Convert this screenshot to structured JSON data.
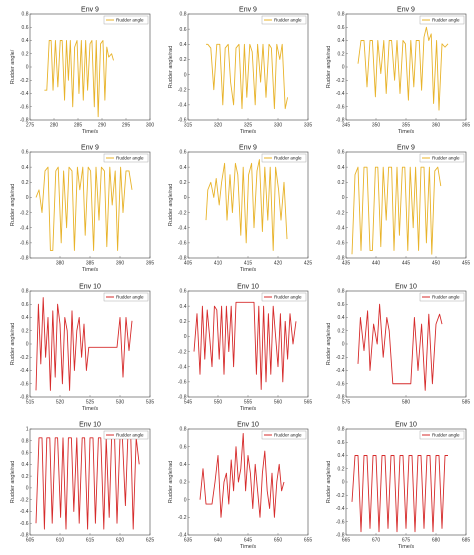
{
  "colors": {
    "yellow": "#e8b32a",
    "red": "#d62b2b",
    "axis": "#555555",
    "frame": "#444444"
  },
  "chart_data": [
    {
      "type": "line",
      "title": "Env 9",
      "xlabel": "Time/s",
      "ylabel": "Rudder angle/",
      "legend": "Rudder angle",
      "color": "yellow",
      "xlim": [
        275,
        300
      ],
      "ylim": [
        -0.8,
        0.8
      ],
      "xticks": [
        275,
        280,
        285,
        290,
        295,
        300
      ],
      "yticks": [
        -0.8,
        -0.6,
        -0.4,
        -0.2,
        0,
        0.2,
        0.4,
        0.6,
        0.8
      ],
      "x": [
        278,
        278.5,
        279,
        279.4,
        279.8,
        280.3,
        280.8,
        281.3,
        281.7,
        282.2,
        282.6,
        283,
        283.4,
        283.9,
        284.3,
        284.8,
        285.2,
        285.7,
        286.1,
        286.6,
        287,
        287.5,
        287.9,
        288.4,
        288.8,
        289.2,
        289.7,
        290.2,
        290.6,
        291,
        291.4,
        292,
        292.4
      ],
      "y": [
        -0.35,
        -0.35,
        0.4,
        0.4,
        -0.35,
        0.4,
        -0.3,
        0.4,
        0.4,
        -0.5,
        0.4,
        -0.2,
        0.4,
        -0.6,
        0.3,
        0.4,
        -0.4,
        0.4,
        -0.5,
        0.4,
        -0.35,
        0.35,
        0.4,
        -0.6,
        0.4,
        -0.75,
        0.35,
        0.4,
        -0.5,
        0.3,
        0.15,
        0.2,
        0.1
      ]
    },
    {
      "type": "line",
      "title": "Env 9",
      "xlabel": "Time/s",
      "ylabel": "Rudder angle/rad",
      "legend": "Rudder angle",
      "color": "yellow",
      "xlim": [
        315,
        335
      ],
      "ylim": [
        -0.6,
        0.8
      ],
      "xticks": [
        315,
        320,
        325,
        330,
        335
      ],
      "yticks": [
        -0.6,
        -0.4,
        -0.2,
        0,
        0.2,
        0.4,
        0.6,
        0.8
      ],
      "x": [
        318,
        318.3,
        318.8,
        319.3,
        319.8,
        320.3,
        320.8,
        321.2,
        321.7,
        322.1,
        322.6,
        323,
        323.5,
        324,
        324.4,
        324.8,
        325.3,
        325.7,
        326.2,
        326.6,
        327.1,
        327.5,
        328,
        328.5,
        328.9,
        329.4,
        329.8,
        330.3,
        330.7,
        331.2,
        331.6
      ],
      "y": [
        0.4,
        0.4,
        0.35,
        -0.2,
        0.4,
        0.4,
        -0.4,
        0.35,
        0.4,
        -0.1,
        -0.4,
        0.35,
        0.4,
        -0.45,
        0.4,
        -0.3,
        0.4,
        0.3,
        -0.4,
        0.4,
        -0.1,
        0.4,
        -0.3,
        0.4,
        0.35,
        -0.45,
        0.4,
        0.2,
        0.4,
        -0.45,
        -0.3
      ]
    },
    {
      "type": "line",
      "title": "Env 9",
      "xlabel": "Time/s",
      "ylabel": "Rudder angle/rad",
      "legend": "Rudder angle",
      "color": "yellow",
      "xlim": [
        345,
        365
      ],
      "ylim": [
        -0.8,
        0.8
      ],
      "xticks": [
        345,
        350,
        355,
        360,
        365
      ],
      "yticks": [
        -0.8,
        -0.6,
        -0.4,
        -0.2,
        0,
        0.2,
        0.4,
        0.6,
        0.8
      ],
      "x": [
        347,
        347.5,
        348,
        348.5,
        349,
        349.4,
        349.9,
        350.3,
        350.8,
        351.3,
        351.7,
        352.2,
        352.6,
        353.1,
        353.5,
        354,
        354.5,
        354.9,
        355.4,
        355.8,
        356.3,
        356.7,
        357.2,
        357.6,
        358,
        358.4,
        358.8,
        359.2,
        359.6,
        360.1,
        360.5,
        361,
        361.5,
        362
      ],
      "y": [
        0.05,
        0.4,
        0.4,
        -0.3,
        0.4,
        0.4,
        -0.45,
        0.4,
        -0.1,
        0.4,
        -0.4,
        0.4,
        0.4,
        -0.2,
        0.4,
        -0.4,
        0.4,
        0.35,
        -0.5,
        0.4,
        -0.3,
        0.4,
        0.4,
        -0.35,
        0.45,
        0.6,
        0.4,
        0.5,
        -0.55,
        0.4,
        -0.65,
        0.35,
        0.3,
        0.35
      ]
    },
    {
      "type": "line",
      "title": "Env 9",
      "xlabel": "Time/s",
      "ylabel": "Rudder angle/rad",
      "legend": "Rudder angle",
      "color": "yellow",
      "xlim": [
        375,
        395
      ],
      "ylim": [
        -0.8,
        0.6
      ],
      "xticks": [
        380,
        385,
        390,
        395
      ],
      "yticks": [
        -0.8,
        -0.6,
        -0.4,
        -0.2,
        0,
        0.2,
        0.4,
        0.6
      ],
      "x": [
        376,
        376.5,
        377,
        377.5,
        378,
        378.4,
        378.8,
        379.3,
        379.7,
        380.2,
        380.6,
        381.1,
        381.5,
        382,
        382.4,
        382.9,
        383.3,
        383.8,
        384.2,
        384.7,
        385.1,
        385.6,
        386,
        386.5,
        386.9,
        387.4,
        387.8,
        388.3,
        388.7,
        389.2,
        389.6,
        390.1,
        390.5,
        391,
        391.5,
        392
      ],
      "y": [
        0,
        0.1,
        -0.2,
        0.35,
        0.4,
        -0.7,
        -0.7,
        0.35,
        0.4,
        -0.6,
        0.35,
        -0.4,
        0.4,
        0.35,
        -0.7,
        0.4,
        0.1,
        0.4,
        -0.5,
        0.4,
        0.35,
        -0.7,
        0.4,
        -0.3,
        0.4,
        0.35,
        -0.65,
        0.4,
        -0.1,
        0.35,
        -0.7,
        0.4,
        -0.2,
        0.35,
        0.35,
        0.1
      ]
    },
    {
      "type": "line",
      "title": "Env 9",
      "xlabel": "Time/s",
      "ylabel": "Rudder angle/rad",
      "legend": "Rudder angle",
      "color": "yellow",
      "xlim": [
        405,
        425
      ],
      "ylim": [
        -0.8,
        0.6
      ],
      "xticks": [
        405,
        410,
        415,
        420,
        425
      ],
      "yticks": [
        -0.8,
        -0.6,
        -0.4,
        -0.2,
        0,
        0.2,
        0.4,
        0.6
      ],
      "x": [
        408,
        408.3,
        408.8,
        409.3,
        409.7,
        410.2,
        410.6,
        411.1,
        411.5,
        412,
        412.4,
        412.9,
        413.3,
        413.8,
        414.2,
        414.7,
        415.1,
        415.6,
        416,
        416.5,
        416.9,
        417.4,
        417.8,
        418.3,
        418.7,
        419.2,
        419.6,
        420.1,
        420.5,
        421,
        421.5
      ],
      "y": [
        -0.3,
        0.1,
        0.2,
        0,
        0.25,
        -0.1,
        0.2,
        0.45,
        -0.3,
        0.3,
        -0.2,
        0.45,
        0.3,
        -0.5,
        0.4,
        -0.6,
        0.3,
        0.45,
        -0.4,
        0.35,
        0.5,
        -0.45,
        0.4,
        -0.3,
        0.4,
        -0.7,
        0.4,
        0.1,
        -0.3,
        0.2,
        -0.55
      ]
    },
    {
      "type": "line",
      "title": "Env 9",
      "xlabel": "",
      "ylabel": "",
      "legend": "Rudder angle",
      "color": "yellow",
      "xlim": [
        435,
        455
      ],
      "ylim": [
        -0.8,
        0.6
      ],
      "xticks": [
        435,
        440,
        445,
        450,
        455
      ],
      "yticks": [
        -0.8,
        -0.6,
        -0.4,
        -0.2,
        0,
        0.2,
        0.4,
        0.6
      ],
      "x": [
        436,
        436.5,
        437,
        437.5,
        438,
        438.5,
        439,
        439.4,
        439.9,
        440.3,
        440.8,
        441.2,
        441.7,
        442.1,
        442.6,
        443,
        443.5,
        443.9,
        444.4,
        444.8,
        445.3,
        445.7,
        446.2,
        446.6,
        447.1,
        447.5,
        448,
        448.4,
        448.9,
        449.3,
        449.8,
        450.3,
        450.8
      ],
      "y": [
        -0.75,
        0.3,
        0.4,
        -0.7,
        0.4,
        0.4,
        -0.7,
        -0.7,
        0.4,
        0.4,
        -0.65,
        0.4,
        -0.3,
        0.4,
        0.4,
        -0.7,
        0.4,
        -0.5,
        0.4,
        0.4,
        -0.7,
        0.4,
        -0.4,
        0.4,
        -0.7,
        0.4,
        0.4,
        -0.6,
        0.4,
        -0.75,
        0.35,
        0.4,
        0.15
      ]
    },
    {
      "type": "line",
      "title": "Env 10",
      "xlabel": "Time/s",
      "ylabel": "Rudder angle/rad",
      "legend": "Rudder angle",
      "color": "red",
      "xlim": [
        515,
        535
      ],
      "ylim": [
        -0.8,
        0.8
      ],
      "xticks": [
        515,
        520,
        525,
        530,
        535
      ],
      "yticks": [
        -0.8,
        -0.6,
        -0.4,
        -0.2,
        0,
        0.2,
        0.4,
        0.6,
        0.8
      ],
      "x": [
        516,
        516.4,
        516.8,
        517.2,
        517.6,
        518,
        518.4,
        518.8,
        519.2,
        519.6,
        520,
        520.4,
        520.8,
        521.2,
        521.6,
        522,
        522.4,
        522.8,
        523.2,
        523.6,
        524,
        524.4,
        524.8,
        525.2,
        525.6,
        526,
        526.5,
        527,
        527.5,
        528,
        528.5,
        529,
        529.5,
        530,
        530.5,
        531,
        531.5,
        532
      ],
      "y": [
        -0.7,
        0.6,
        -0.3,
        0.7,
        -0.2,
        0.4,
        -0.7,
        0.5,
        -0.5,
        0.6,
        0.3,
        -0.6,
        0.4,
        0.2,
        -0.7,
        0.5,
        -0.4,
        0.2,
        0.4,
        -0.2,
        0.3,
        -0.4,
        -0.05,
        -0.05,
        -0.05,
        -0.05,
        -0.05,
        -0.05,
        -0.05,
        -0.05,
        -0.05,
        -0.05,
        -0.05,
        0.4,
        -0.5,
        0.4,
        -0.1,
        0.35
      ]
    },
    {
      "type": "line",
      "title": "Env 10",
      "xlabel": "Time/s",
      "ylabel": "",
      "legend": "Rudder angle",
      "color": "red",
      "xlim": [
        545,
        565
      ],
      "ylim": [
        -0.8,
        0.6
      ],
      "xticks": [
        545,
        550,
        555,
        560,
        565
      ],
      "yticks": [
        -0.8,
        -0.6,
        -0.4,
        -0.2,
        0,
        0.2,
        0.4,
        0.6
      ],
      "x": [
        546,
        546.5,
        547,
        547.4,
        547.8,
        548.2,
        548.6,
        549,
        549.4,
        549.8,
        550.2,
        550.6,
        551,
        551.4,
        551.8,
        552.2,
        552.6,
        553,
        553.5,
        554,
        554.5,
        555,
        555.5,
        556,
        556.4,
        556.8,
        557.2,
        557.6,
        558,
        558.4,
        558.8,
        559.2,
        559.6,
        560,
        560.4,
        560.8,
        561.2,
        561.6,
        562,
        562.5,
        563
      ],
      "y": [
        -0.2,
        0.3,
        -0.5,
        0.4,
        -0.3,
        0.35,
        0,
        -0.4,
        0.4,
        0.35,
        -0.3,
        0.4,
        -0.5,
        0.4,
        -0.2,
        0.4,
        -0.4,
        0.45,
        0.45,
        0.45,
        0.45,
        0.45,
        0.45,
        0.45,
        -0.5,
        0.4,
        -0.7,
        0.4,
        -0.6,
        0.3,
        -0.5,
        0.4,
        0,
        -0.4,
        0.3,
        -0.6,
        0.2,
        -0.3,
        0.3,
        -0.1,
        0.2
      ]
    },
    {
      "type": "line",
      "title": "Env 10",
      "xlabel": "",
      "ylabel": "Rudder angle/rad",
      "legend": "Rudder angle",
      "color": "red",
      "xlim": [
        575,
        585
      ],
      "ylim": [
        -0.8,
        0.8
      ],
      "xticks": [
        575,
        580,
        585
      ],
      "yticks": [
        -0.8,
        -0.6,
        -0.4,
        -0.2,
        0,
        0.2,
        0.4,
        0.6,
        0.8
      ],
      "x": [
        576,
        576.2,
        576.5,
        576.8,
        577,
        577.3,
        577.6,
        577.8,
        578.1,
        578.4,
        578.6,
        578.9,
        579.2,
        579.5,
        579.8,
        580.1,
        580.4,
        580.7,
        581,
        581.3,
        581.6,
        581.9,
        582.2,
        582.5,
        582.8,
        583
      ],
      "y": [
        -0.3,
        0.4,
        -0.1,
        0.5,
        -0.4,
        0.3,
        0,
        0.6,
        -0.2,
        0.4,
        0.2,
        -0.6,
        -0.6,
        -0.6,
        -0.6,
        -0.6,
        -0.6,
        0.4,
        -0.4,
        0.3,
        -0.7,
        0.45,
        -0.6,
        0.3,
        0.45,
        0.3
      ]
    },
    {
      "type": "line",
      "title": "Env 10",
      "xlabel": "",
      "ylabel": "Rudder angle/rad",
      "legend": "Rudder angle",
      "color": "red",
      "xlim": [
        605,
        625
      ],
      "ylim": [
        -0.8,
        1
      ],
      "xticks": [
        605,
        610,
        615,
        620,
        625
      ],
      "yticks": [
        -0.8,
        -0.6,
        -0.4,
        -0.2,
        0,
        0.2,
        0.4,
        0.6,
        0.8,
        1
      ],
      "x": [
        606,
        606.5,
        607,
        607.4,
        607.8,
        608.3,
        608.7,
        609.2,
        609.6,
        610.1,
        610.5,
        611,
        611.4,
        611.9,
        612.3,
        612.8,
        613.2,
        613.7,
        614.1,
        614.6,
        615,
        615.5,
        615.9,
        616.4,
        616.8,
        617.3,
        617.7,
        618.2,
        618.6,
        619.1,
        619.5,
        620,
        620.4,
        620.9,
        621.3,
        621.8,
        622.2,
        622.7,
        623.2
      ],
      "y": [
        -0.6,
        0.85,
        0.85,
        -0.7,
        0.85,
        0.85,
        -0.6,
        0.85,
        0.85,
        -0.5,
        0.85,
        -0.7,
        0.85,
        0.85,
        -0.4,
        0.85,
        -0.6,
        0.85,
        0.85,
        -0.7,
        0.85,
        0.85,
        -0.6,
        0.85,
        0.85,
        -0.7,
        0.85,
        -0.5,
        0.85,
        0.85,
        -0.6,
        0.85,
        0.85,
        -0.3,
        0.85,
        0.85,
        -0.7,
        0.85,
        0.4
      ]
    },
    {
      "type": "line",
      "title": "Env 10",
      "xlabel": "Time/s",
      "ylabel": "Rudder angle/rad",
      "legend": "Rudder angle",
      "color": "red",
      "xlim": [
        635,
        655
      ],
      "ylim": [
        -0.4,
        0.8
      ],
      "xticks": [
        635,
        640,
        645,
        650,
        655
      ],
      "yticks": [
        -0.4,
        -0.2,
        0,
        0.2,
        0.4,
        0.6,
        0.8
      ],
      "x": [
        637,
        637.5,
        638,
        638.5,
        639,
        639.5,
        640,
        640.5,
        641,
        641.4,
        641.8,
        642.2,
        642.6,
        643,
        643.4,
        643.8,
        644.2,
        644.6,
        645,
        645.4,
        645.8,
        646.2,
        646.6,
        647,
        647.4,
        647.8,
        648.2,
        648.6,
        649,
        649.4,
        649.8,
        650.2,
        650.6,
        651
      ],
      "y": [
        0,
        0.35,
        -0.05,
        -0.05,
        -0.05,
        0.2,
        0.5,
        -0.2,
        0.2,
        0.3,
        -0.05,
        0.45,
        0.1,
        0.6,
        0.2,
        0.35,
        0.75,
        0.1,
        0.5,
        0.3,
        -0.1,
        0.4,
        0.1,
        -0.2,
        0.3,
        0.55,
        0.1,
        -0.1,
        0.3,
        -0.2,
        0.2,
        0.4,
        0.1,
        0.2
      ]
    },
    {
      "type": "line",
      "title": "Env 10",
      "xlabel": "Time/s",
      "ylabel": "Rudder angle/rad",
      "legend": "Rudder angle",
      "color": "red",
      "xlim": [
        665,
        685
      ],
      "ylim": [
        -0.8,
        0.8
      ],
      "xticks": [
        665,
        670,
        675,
        680,
        685
      ],
      "yticks": [
        -0.8,
        -0.6,
        -0.4,
        -0.2,
        0,
        0.2,
        0.4,
        0.6,
        0.8
      ],
      "x": [
        666,
        666.5,
        667,
        667.5,
        668,
        668.5,
        669,
        669.5,
        670,
        670.5,
        671,
        671.5,
        672,
        672.5,
        673,
        673.5,
        674,
        674.5,
        675,
        675.5,
        676,
        676.5,
        677,
        677.5,
        678,
        678.5,
        679,
        679.5,
        680,
        680.5,
        681,
        681.5,
        682
      ],
      "y": [
        -0.3,
        0.4,
        0.4,
        -0.75,
        0.4,
        0.4,
        -0.7,
        0.4,
        0.4,
        -0.75,
        0.4,
        0.4,
        -0.7,
        0.4,
        0.4,
        -0.75,
        0.4,
        0.4,
        -0.7,
        0.4,
        0.4,
        -0.75,
        0.4,
        0.4,
        -0.7,
        0.4,
        0.4,
        -0.75,
        0.4,
        0.4,
        -0.7,
        0.4,
        0.4
      ]
    }
  ]
}
